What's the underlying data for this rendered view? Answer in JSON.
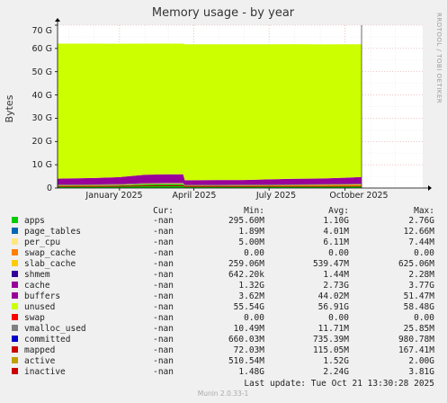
{
  "chart_data": {
    "type": "area",
    "title": "Memory usage - by year",
    "ylabel": "Bytes",
    "side_label": "RRDTOOL / TOBI OETIKER",
    "ylim": [
      0,
      70
    ],
    "y_ticks": [
      "0",
      "10 G",
      "20 G",
      "30 G",
      "40 G",
      "50 G",
      "60 G",
      "70 G"
    ],
    "x_ticks": [
      "January 2025",
      "April 2025",
      "July 2025",
      "October 2025"
    ],
    "x_tick_dates": [
      "2025-01-01",
      "2025-04-01",
      "2025-07-01",
      "2025-10-01"
    ],
    "x_range": [
      "2024-10-18",
      "2026-01-03"
    ],
    "data_end": "2025-10-21",
    "grid": true,
    "series_note": "stacked areas in GB: apps, page_tables, per_cpu, swap_cache, slab_cache, shmem, cache, buffers, unused",
    "stack_x": [
      "2024-10-18",
      "2024-11-01",
      "2024-12-01",
      "2025-01-01",
      "2025-02-01",
      "2025-03-01",
      "2025-03-19",
      "2025-03-21",
      "2025-05-01",
      "2025-06-01",
      "2025-07-01",
      "2025-08-01",
      "2025-09-01",
      "2025-10-01",
      "2025-10-21"
    ],
    "series": [
      {
        "name": "apps",
        "color": "#00cc00",
        "values": [
          0.9,
          0.9,
          1.0,
          1.1,
          1.5,
          1.6,
          1.6,
          0.6,
          0.6,
          0.6,
          0.7,
          0.8,
          0.8,
          0.9,
          1.0
        ]
      },
      {
        "name": "page_tables",
        "color": "#0066b3",
        "values": [
          0.01,
          0.01,
          0.01,
          0.01,
          0.01,
          0.01,
          0.01,
          0.01,
          0.01,
          0.01,
          0.01,
          0.01,
          0.01,
          0.01,
          0.01
        ]
      },
      {
        "name": "per_cpu",
        "color": "#ffcc00",
        "values": [
          0.006,
          0.006,
          0.006,
          0.006,
          0.006,
          0.006,
          0.006,
          0.006,
          0.006,
          0.006,
          0.006,
          0.006,
          0.006,
          0.006,
          0.006
        ]
      },
      {
        "name": "swap_cache",
        "color": "#ff8000",
        "values": [
          0,
          0,
          0,
          0,
          0,
          0,
          0,
          0,
          0,
          0,
          0,
          0,
          0,
          0,
          0
        ]
      },
      {
        "name": "slab_cache",
        "color": "#ffcc00",
        "values": [
          0.5,
          0.5,
          0.5,
          0.55,
          0.6,
          0.6,
          0.6,
          0.5,
          0.5,
          0.5,
          0.5,
          0.55,
          0.55,
          0.6,
          0.6
        ]
      },
      {
        "name": "shmem",
        "color": "#330099",
        "values": [
          0.0014,
          0.0014,
          0.0014,
          0.0014,
          0.0014,
          0.0014,
          0.0014,
          0.0014,
          0.0014,
          0.0014,
          0.0014,
          0.0014,
          0.0014,
          0.0014,
          0.0014
        ]
      },
      {
        "name": "cache",
        "color": "#990099",
        "values": [
          2.6,
          2.7,
          2.8,
          3.0,
          3.6,
          3.7,
          3.7,
          2.2,
          2.3,
          2.3,
          2.5,
          2.6,
          2.7,
          2.9,
          3.1
        ]
      },
      {
        "name": "buffers",
        "color": "#ccff00",
        "values": [
          0.04,
          0.04,
          0.04,
          0.04,
          0.05,
          0.05,
          0.05,
          0.04,
          0.04,
          0.04,
          0.04,
          0.04,
          0.05,
          0.05,
          0.05
        ]
      },
      {
        "name": "unused",
        "color": "#ccff00",
        "values": [
          58.0,
          57.9,
          57.7,
          57.3,
          56.3,
          56.1,
          56.1,
          58.4,
          58.3,
          58.3,
          58.0,
          57.8,
          57.6,
          57.3,
          57.0
        ]
      }
    ],
    "lines": [
      {
        "name": "committed",
        "color": "#cc0000",
        "values": [
          0.7,
          0.7,
          0.72,
          0.74,
          0.9,
          0.95,
          0.95,
          0.7,
          0.7,
          0.7,
          0.72,
          0.72,
          0.74,
          0.76,
          0.8
        ]
      },
      {
        "name": "active",
        "color": "#808080",
        "values": [
          1.3,
          1.3,
          1.4,
          1.5,
          1.9,
          2.0,
          2.0,
          1.2,
          1.2,
          1.3,
          1.3,
          1.4,
          1.5,
          1.6,
          1.7
        ]
      }
    ]
  },
  "legend": {
    "headers": {
      "cur": "Cur:",
      "min": "Min:",
      "avg": "Avg:",
      "max": "Max:"
    },
    "rows": [
      {
        "name": "apps",
        "color": "#00cc00",
        "cur": "-nan",
        "min": "295.60M",
        "avg": "1.10G",
        "max": "2.76G"
      },
      {
        "name": "page_tables",
        "color": "#0066b3",
        "cur": "-nan",
        "min": "1.89M",
        "avg": "4.01M",
        "max": "12.66M"
      },
      {
        "name": "per_cpu",
        "color": "#ffe680",
        "cur": "-nan",
        "min": "5.00M",
        "avg": "6.11M",
        "max": "7.44M"
      },
      {
        "name": "swap_cache",
        "color": "#ff8000",
        "cur": "-nan",
        "min": "0.00",
        "avg": "0.00",
        "max": "0.00"
      },
      {
        "name": "slab_cache",
        "color": "#ffcc00",
        "cur": "-nan",
        "min": "259.06M",
        "avg": "539.47M",
        "max": "625.06M"
      },
      {
        "name": "shmem",
        "color": "#330099",
        "cur": "-nan",
        "min": "642.20k",
        "avg": "1.44M",
        "max": "2.28M"
      },
      {
        "name": "cache",
        "color": "#990099",
        "cur": "-nan",
        "min": "1.32G",
        "avg": "2.73G",
        "max": "3.77G"
      },
      {
        "name": "buffers",
        "color": "#990099",
        "cur": "-nan",
        "min": "3.62M",
        "avg": "44.02M",
        "max": "51.47M"
      },
      {
        "name": "unused",
        "color": "#ccff00",
        "cur": "-nan",
        "min": "55.54G",
        "avg": "56.91G",
        "max": "58.48G"
      },
      {
        "name": "swap",
        "color": "#ff0000",
        "cur": "-nan",
        "min": "0.00",
        "avg": "0.00",
        "max": "0.00"
      },
      {
        "name": "vmalloc_used",
        "color": "#808080",
        "cur": "-nan",
        "min": "10.49M",
        "avg": "11.71M",
        "max": "25.85M"
      },
      {
        "name": "committed",
        "color": "#0000cc",
        "cur": "-nan",
        "min": "660.03M",
        "avg": "735.39M",
        "max": "980.78M"
      },
      {
        "name": "mapped",
        "color": "#cc0000",
        "cur": "-nan",
        "min": "72.03M",
        "avg": "115.05M",
        "max": "167.41M"
      },
      {
        "name": "active",
        "color": "#c0a000",
        "cur": "-nan",
        "min": "510.54M",
        "avg": "1.52G",
        "max": "2.00G"
      },
      {
        "name": "inactive",
        "color": "#cc0000",
        "cur": "-nan",
        "min": "1.48G",
        "avg": "2.24G",
        "max": "3.81G"
      }
    ]
  },
  "last_update": "Last update:  Tue Oct 21 13:30:28 2025",
  "footer": "Munin 2.0.33-1"
}
